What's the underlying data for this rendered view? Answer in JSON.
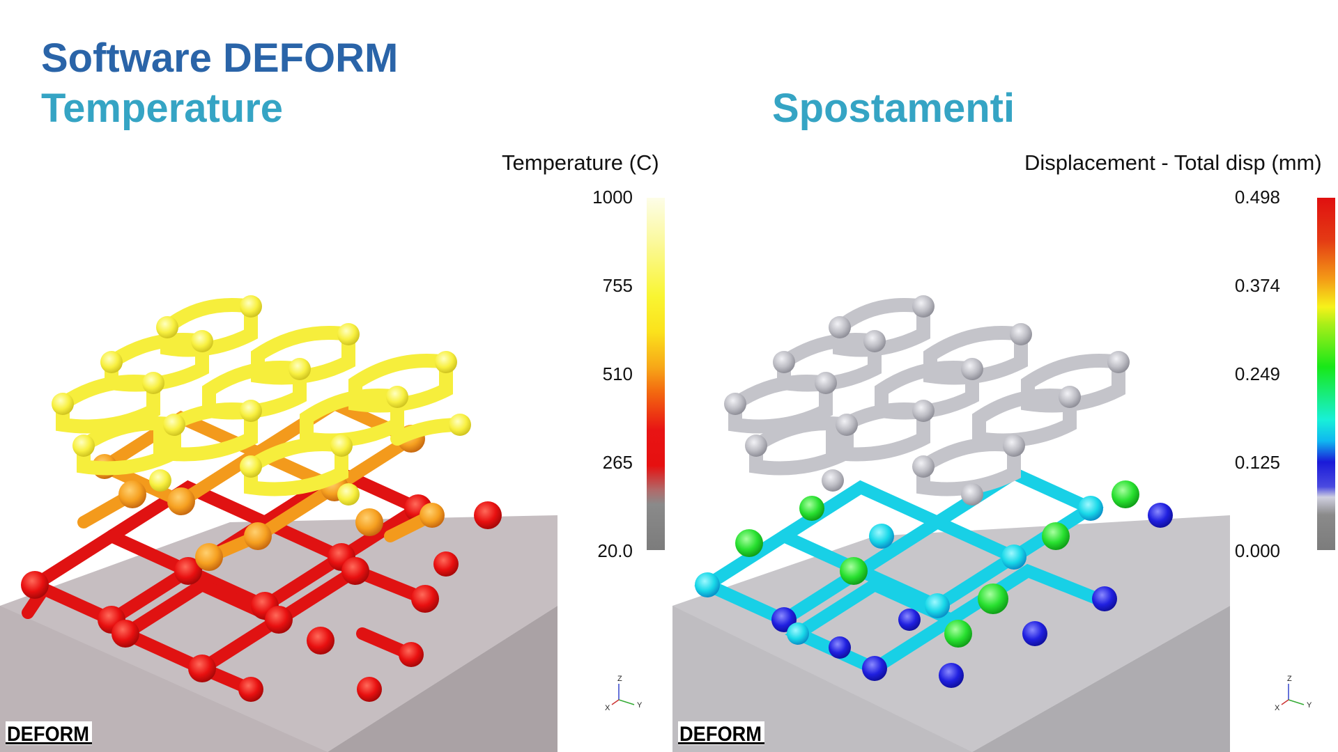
{
  "slide": {
    "title": "Software DEFORM",
    "left_subtitle": "Temperature",
    "right_subtitle": "Spostamenti"
  },
  "temperature_panel": {
    "legend_title": "Temperature (C)",
    "ticks": [
      "1000",
      "755",
      "510",
      "265",
      "20.0"
    ]
  },
  "displacement_panel": {
    "legend_title": "Displacement - Total disp (mm)",
    "ticks": [
      "0.498",
      "0.374",
      "0.249",
      "0.125",
      "0.000"
    ]
  },
  "triad": {
    "z": "Z",
    "x": "X",
    "y": "Y"
  },
  "logo": {
    "text": "DEFORM"
  },
  "colors": {
    "title": "#2a64a8",
    "subtitle": "#35a4c4",
    "base_plate": "#c4bcbf"
  }
}
